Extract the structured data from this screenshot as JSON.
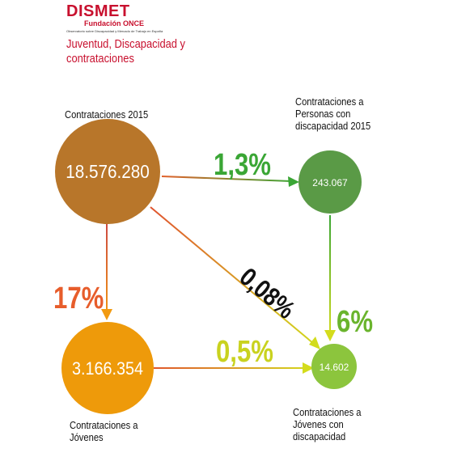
{
  "logo": {
    "name": "DISMET",
    "sub": "Fundación ONCE",
    "tagline": "Observatorio sobre Discapacidad y Mercado de Trabajo en España"
  },
  "title": "Juventud, Discapacidad y contrataciones",
  "nodes": {
    "total": {
      "label": "Contrataciones 2015",
      "value": "18.576.280",
      "color": "#b8762a"
    },
    "disabled": {
      "label": "Contrataciones a Personas con discapacidad 2015",
      "value": "243.067",
      "color": "#5a9a46"
    },
    "young": {
      "label": "Contrataciones a Jóvenes",
      "value": "3.166.354",
      "color": "#ee9a0a"
    },
    "young_disabled": {
      "label": "Contrataciones a Jóvenes con discapacidad",
      "value": "14.602",
      "color": "#8cc53d"
    }
  },
  "edges": {
    "total_to_disabled": {
      "pct": "1,3%",
      "color": "#3aa635"
    },
    "total_to_young": {
      "pct": "17%",
      "color": "#e75d2b"
    },
    "total_to_young_disabled": {
      "pct": "0,08%",
      "color": "#111111"
    },
    "disabled_to_young_disabled": {
      "pct": "6%",
      "color": "#6ab42d"
    },
    "young_to_young_disabled": {
      "pct": "0,5%",
      "color": "#c9d21f"
    }
  }
}
